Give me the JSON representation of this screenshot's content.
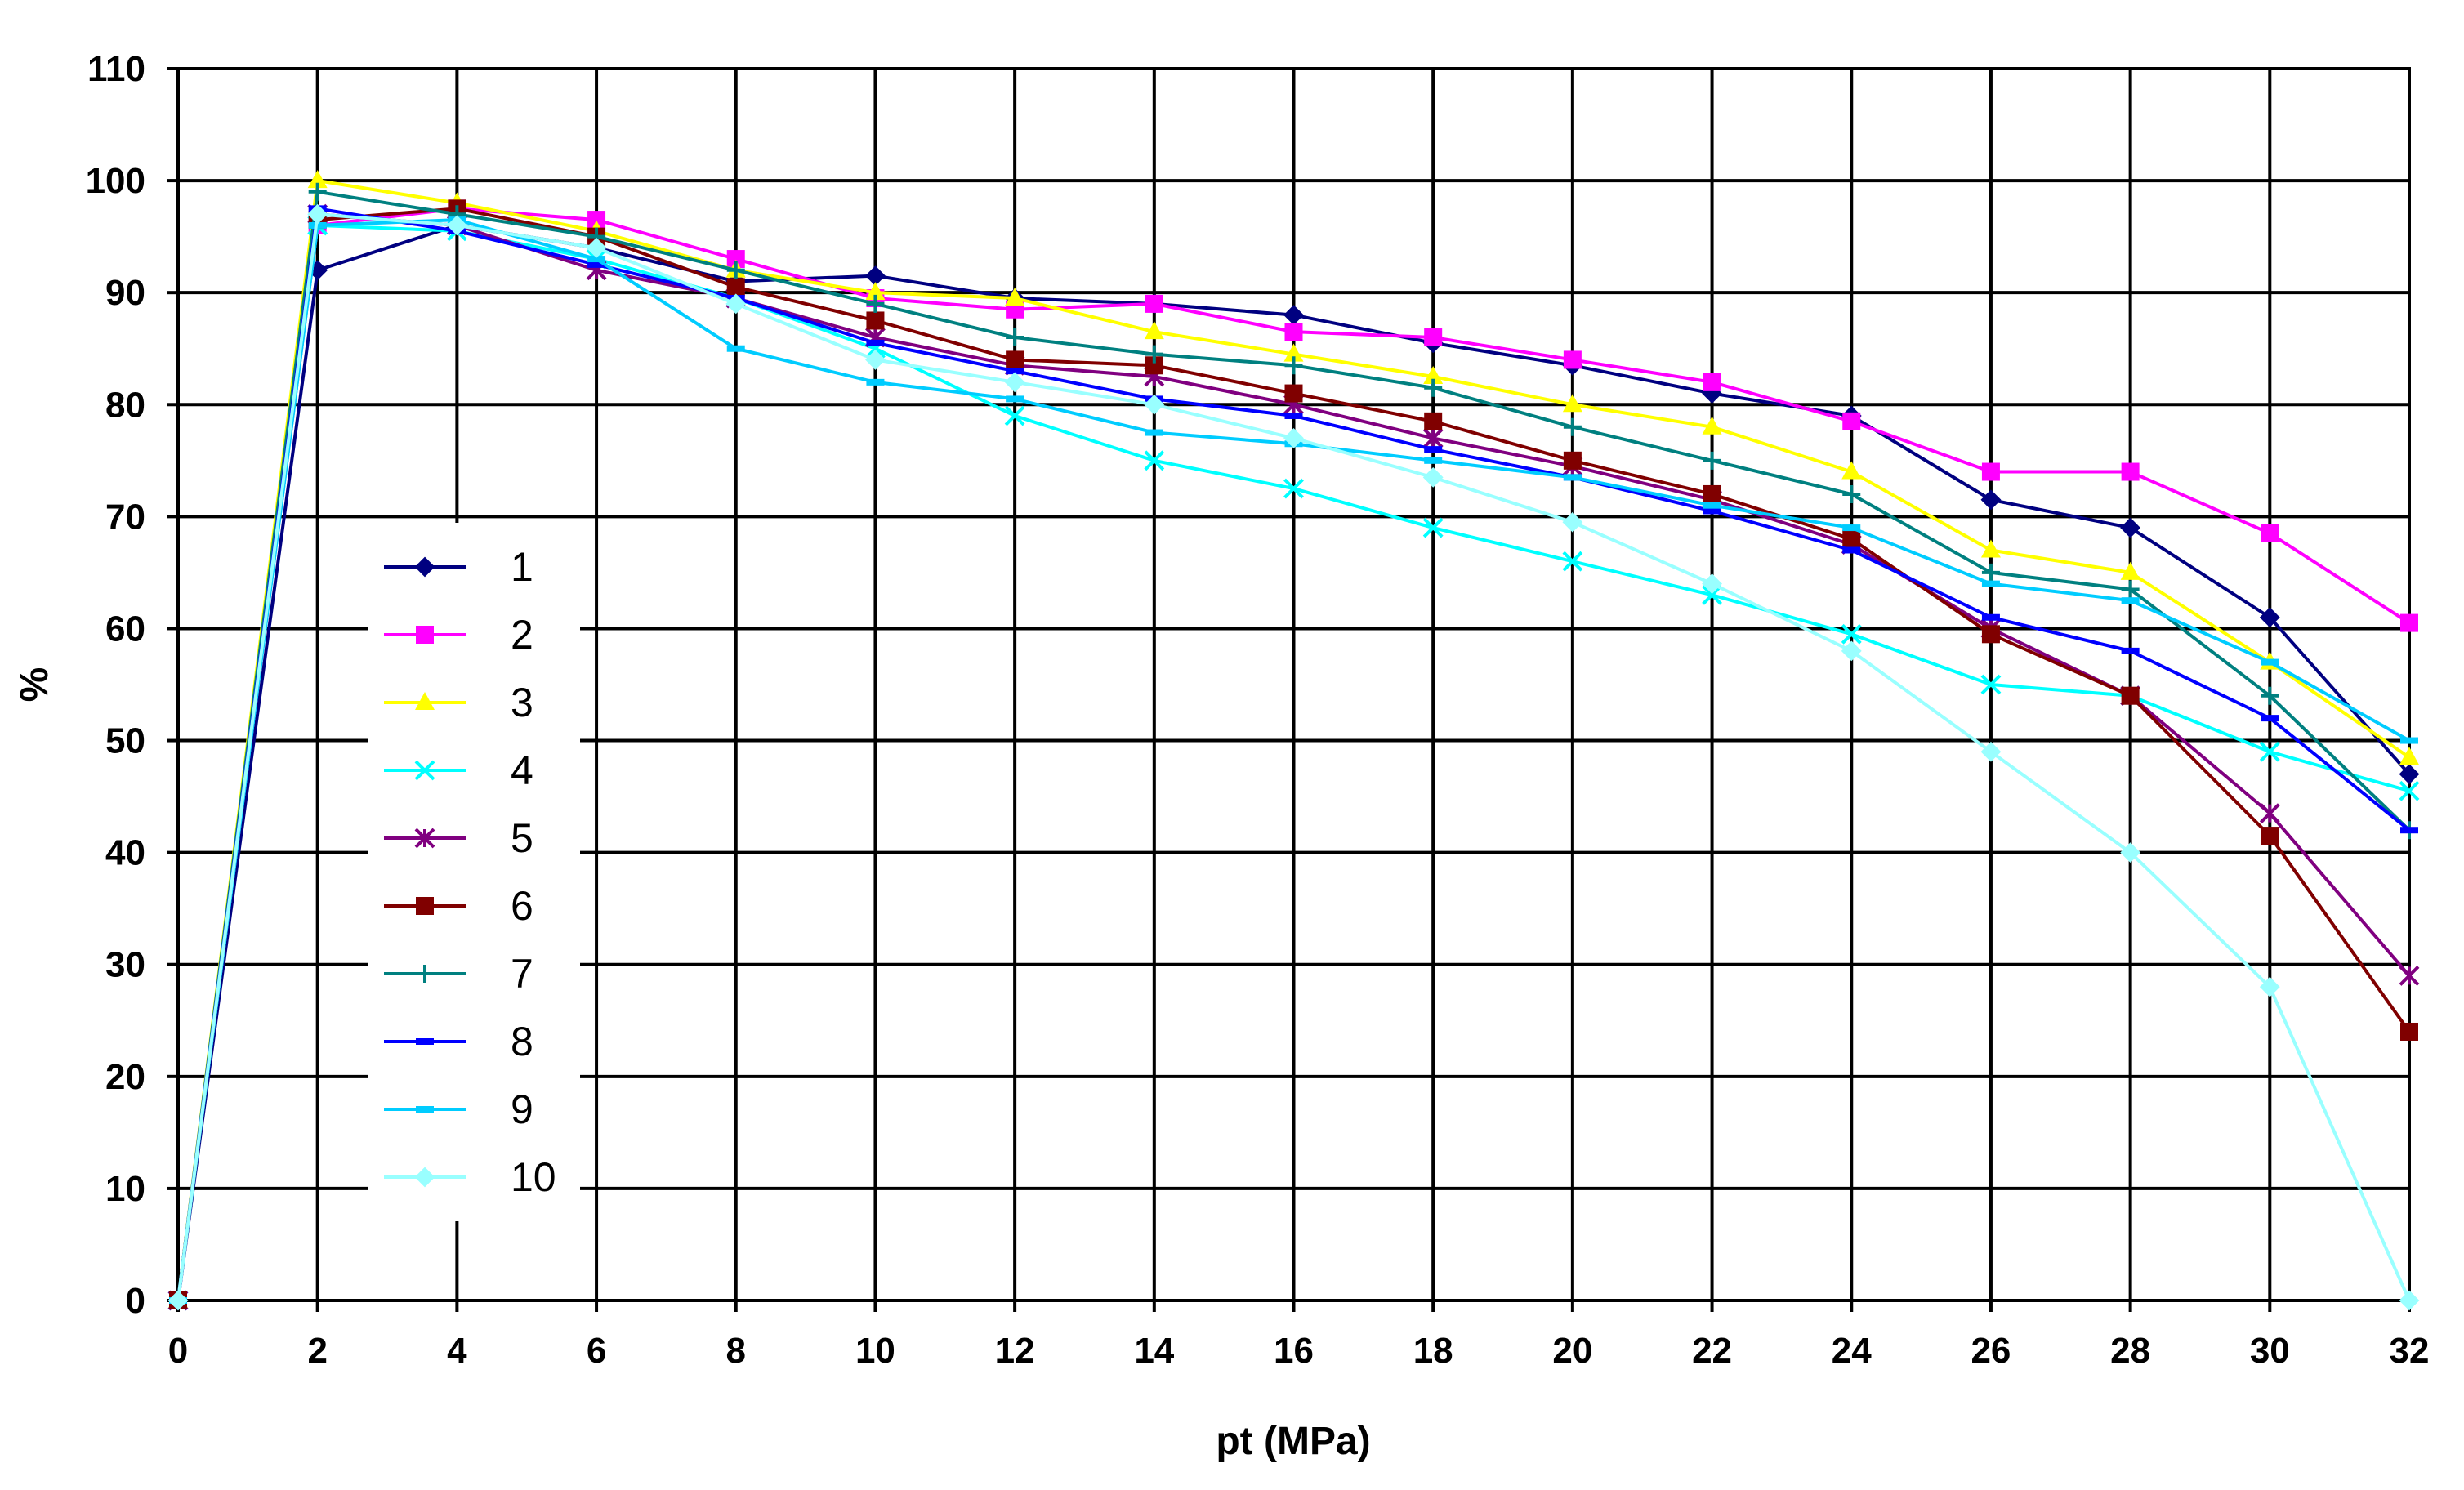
{
  "chart_data": {
    "type": "line",
    "title": "",
    "xlabel": "pt (MPa)",
    "ylabel": "%",
    "xlim": [
      0,
      32
    ],
    "ylim": [
      0,
      110
    ],
    "grid": true,
    "legend_position": "left-middle",
    "x_ticks": [
      0,
      2,
      4,
      6,
      8,
      10,
      12,
      14,
      16,
      18,
      20,
      22,
      24,
      26,
      28,
      30,
      32
    ],
    "y_ticks": [
      0,
      10,
      20,
      30,
      40,
      50,
      60,
      70,
      80,
      90,
      100,
      110
    ],
    "x": [
      0,
      2,
      4,
      6,
      8,
      10,
      12,
      14,
      16,
      18,
      20,
      22,
      24,
      26,
      28,
      30,
      32
    ],
    "series": [
      {
        "name": "1",
        "color": "#000080",
        "marker": "diamond",
        "values": [
          0,
          92,
          96,
          94,
          91,
          91.5,
          89.5,
          89,
          88,
          85.5,
          83.5,
          81,
          79,
          71.5,
          69,
          61,
          47
        ]
      },
      {
        "name": "2",
        "color": "#FF00FF",
        "marker": "square",
        "values": [
          0,
          96,
          97.5,
          96.5,
          93,
          89.5,
          88.5,
          89,
          86.5,
          86,
          84,
          82,
          78.5,
          74,
          74,
          68.5,
          60.5
        ]
      },
      {
        "name": "3",
        "color": "#FFFF00",
        "marker": "triangle",
        "values": [
          0,
          100,
          98,
          95.5,
          92,
          90,
          89.5,
          86.5,
          84.5,
          82.5,
          80,
          78,
          74,
          67,
          65,
          57,
          48.5
        ]
      },
      {
        "name": "4",
        "color": "#00FFFF",
        "marker": "x",
        "values": [
          0,
          96,
          95.5,
          93,
          89.5,
          85,
          79,
          75,
          72.5,
          69,
          66,
          63,
          59.5,
          55,
          54,
          49,
          45.5
        ]
      },
      {
        "name": "5",
        "color": "#800080",
        "marker": "star",
        "values": [
          0,
          97,
          96,
          92,
          89.5,
          86,
          83.5,
          82.5,
          80,
          77,
          74.5,
          71.5,
          67.5,
          60,
          54,
          43.5,
          29
        ]
      },
      {
        "name": "6",
        "color": "#800000",
        "marker": "square",
        "values": [
          0,
          96.5,
          97.5,
          95,
          90.5,
          87.5,
          84,
          83.5,
          81,
          78.5,
          75,
          72,
          68,
          59.5,
          54,
          41.5,
          24
        ]
      },
      {
        "name": "7",
        "color": "#008080",
        "marker": "plus",
        "values": [
          0,
          99,
          97,
          95,
          92,
          89,
          86,
          84.5,
          83.5,
          81.5,
          78,
          75,
          72,
          65,
          63.5,
          54,
          42
        ]
      },
      {
        "name": "8",
        "color": "#0000FF",
        "marker": "dash",
        "values": [
          0,
          97.5,
          95.5,
          92.5,
          89.5,
          85.5,
          83,
          80.5,
          79,
          76,
          73.5,
          70.5,
          67,
          61,
          58,
          52,
          42
        ]
      },
      {
        "name": "9",
        "color": "#00CCFF",
        "marker": "dash",
        "values": [
          0,
          96,
          96.5,
          93,
          85,
          82,
          80.5,
          77.5,
          76.5,
          75,
          73.5,
          71,
          69,
          64,
          62.5,
          57,
          50
        ]
      },
      {
        "name": "10",
        "color": "#99FFFF",
        "marker": "diamond",
        "values": [
          0,
          97,
          96,
          94,
          89,
          84,
          82,
          80,
          77,
          73.5,
          69.5,
          64,
          58,
          49,
          40,
          28,
          0
        ]
      }
    ]
  }
}
